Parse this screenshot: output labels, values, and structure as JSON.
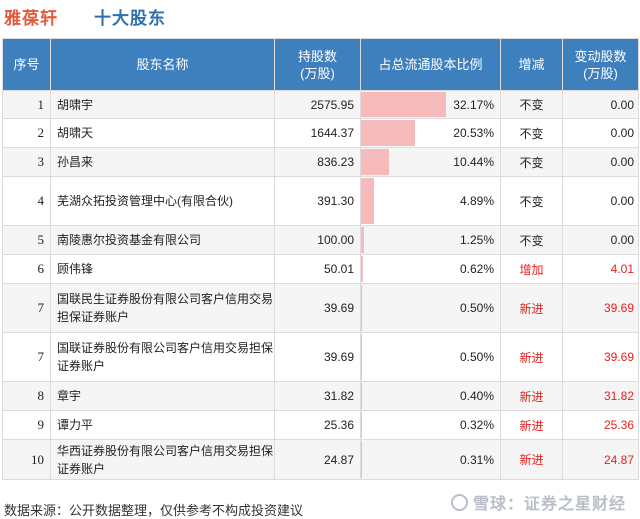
{
  "header": {
    "company": "雅葆轩",
    "title": "十大股东"
  },
  "table": {
    "columns": [
      "序号",
      "股东名称",
      "持股数\n(万股)",
      "占总流通股本比例",
      "增减",
      "变动股数\n(万股)"
    ],
    "rows": [
      {
        "rank": "1",
        "name": "胡啸宇",
        "shares": "2575.95",
        "ratio": "32.17%",
        "ratio_value": 32.17,
        "change": "不变",
        "delta": "0.00",
        "highlight": false
      },
      {
        "rank": "2",
        "name": "胡啸天",
        "shares": "1644.37",
        "ratio": "20.53%",
        "ratio_value": 20.53,
        "change": "不变",
        "delta": "0.00",
        "highlight": false
      },
      {
        "rank": "3",
        "name": "孙昌来",
        "shares": "836.23",
        "ratio": "10.44%",
        "ratio_value": 10.44,
        "change": "不变",
        "delta": "0.00",
        "highlight": false
      },
      {
        "rank": "4",
        "name": "芜湖众拓投资管理中心(有限合伙)",
        "shares": "391.30",
        "ratio": "4.89%",
        "ratio_value": 4.89,
        "change": "不变",
        "delta": "0.00",
        "highlight": false
      },
      {
        "rank": "5",
        "name": "南陵惠尔投资基金有限公司",
        "shares": "100.00",
        "ratio": "1.25%",
        "ratio_value": 1.25,
        "change": "不变",
        "delta": "0.00",
        "highlight": false
      },
      {
        "rank": "6",
        "name": "顾伟锋",
        "shares": "50.01",
        "ratio": "0.62%",
        "ratio_value": 0.62,
        "change": "增加",
        "delta": "4.01",
        "highlight": true
      },
      {
        "rank": "7",
        "name": "国联民生证券股份有限公司客户信用交易担保证券账户",
        "shares": "39.69",
        "ratio": "0.50%",
        "ratio_value": 0.5,
        "change": "新进",
        "delta": "39.69",
        "highlight": true
      },
      {
        "rank": "7",
        "name": "国联证券股份有限公司客户信用交易担保证券账户",
        "shares": "39.69",
        "ratio": "0.50%",
        "ratio_value": 0.5,
        "change": "新进",
        "delta": "39.69",
        "highlight": true
      },
      {
        "rank": "8",
        "name": "章宇",
        "shares": "31.82",
        "ratio": "0.40%",
        "ratio_value": 0.4,
        "change": "新进",
        "delta": "31.82",
        "highlight": true
      },
      {
        "rank": "9",
        "name": "谭力平",
        "shares": "25.36",
        "ratio": "0.32%",
        "ratio_value": 0.32,
        "change": "新进",
        "delta": "25.36",
        "highlight": true
      },
      {
        "rank": "10",
        "name": "华西证券股份有限公司客户信用交易担保证券账户",
        "shares": "24.87",
        "ratio": "0.31%",
        "ratio_value": 0.31,
        "change": "新进",
        "delta": "24.87",
        "highlight": true
      }
    ]
  },
  "footer": {
    "source": "数据来源：公开数据整理，仅供参考不构成投资建议"
  },
  "brand": {
    "text": "雪球：证券之星财经"
  },
  "watermark": {
    "text": "证券之星"
  },
  "colors": {
    "header_bg": "#3e7fbe",
    "bar": "#f6b9bc",
    "up": "#e8211c",
    "company": "#e45a3c",
    "title": "#2e6fb0"
  }
}
